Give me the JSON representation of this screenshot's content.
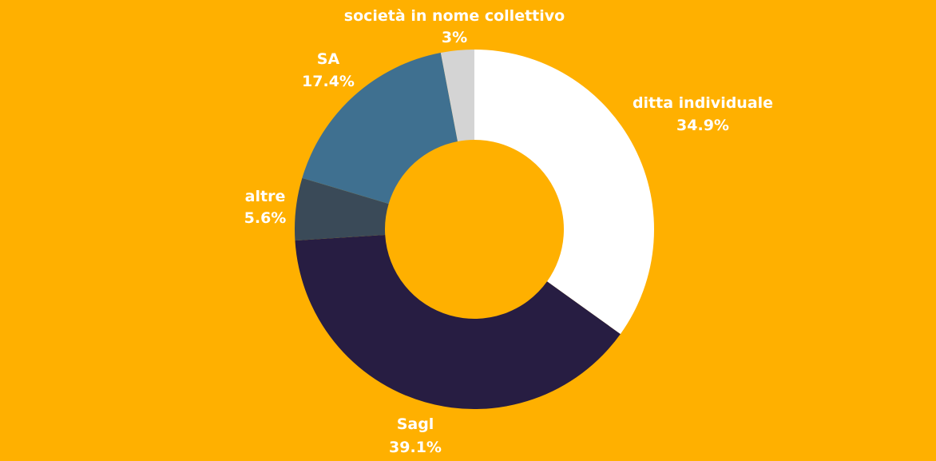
{
  "colors": {
    "background": "#FFB000",
    "label_text": "#FFFFFF"
  },
  "chart_data": {
    "type": "pie",
    "variant": "donut",
    "title": "",
    "legend": "none",
    "slices": [
      {
        "label": "ditta individuale",
        "value": 34.9,
        "value_label": "34.9%",
        "color": "#FFFFFF"
      },
      {
        "label": "Sagl",
        "value": 39.1,
        "value_label": "39.1%",
        "color": "#271D42"
      },
      {
        "label": "altre",
        "value": 5.6,
        "value_label": "5.6%",
        "color": "#3A4A58"
      },
      {
        "label": "SA",
        "value": 17.4,
        "value_label": "17.4%",
        "color": "#3F7090"
      },
      {
        "label": "società in nome collettivo",
        "value": 3.0,
        "value_label": "3%",
        "color": "#D4D4D4"
      }
    ]
  }
}
